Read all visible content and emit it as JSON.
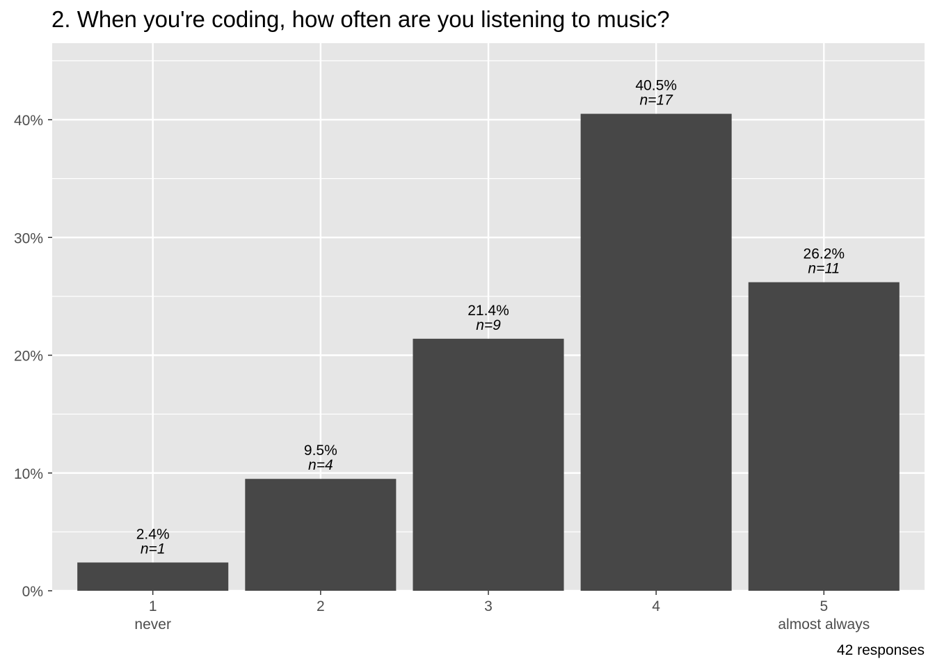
{
  "chart_data": {
    "type": "bar",
    "title": "2. When you're coding, how often are you listening to music?",
    "categories": [
      "1",
      "2",
      "3",
      "4",
      "5"
    ],
    "category_sublabels": [
      "never",
      "",
      "",
      "",
      "almost always"
    ],
    "values": [
      2.4,
      9.5,
      21.4,
      40.5,
      26.2
    ],
    "value_labels": [
      "2.4%",
      "9.5%",
      "21.4%",
      "40.5%",
      "26.2%"
    ],
    "counts": [
      "n=1",
      "n=4",
      "n=9",
      "n=17",
      "n=11"
    ],
    "y_ticks": [
      0,
      10,
      20,
      30,
      40
    ],
    "y_tick_labels": [
      "0%",
      "10%",
      "20%",
      "30%",
      "40%"
    ],
    "ylim": [
      0,
      46.5
    ],
    "xlabel": "",
    "ylabel": "",
    "caption": "42 responses",
    "grid": true,
    "colors": {
      "bar": "#474747",
      "panel": "#e6e6e6",
      "grid": "#ffffff"
    }
  }
}
